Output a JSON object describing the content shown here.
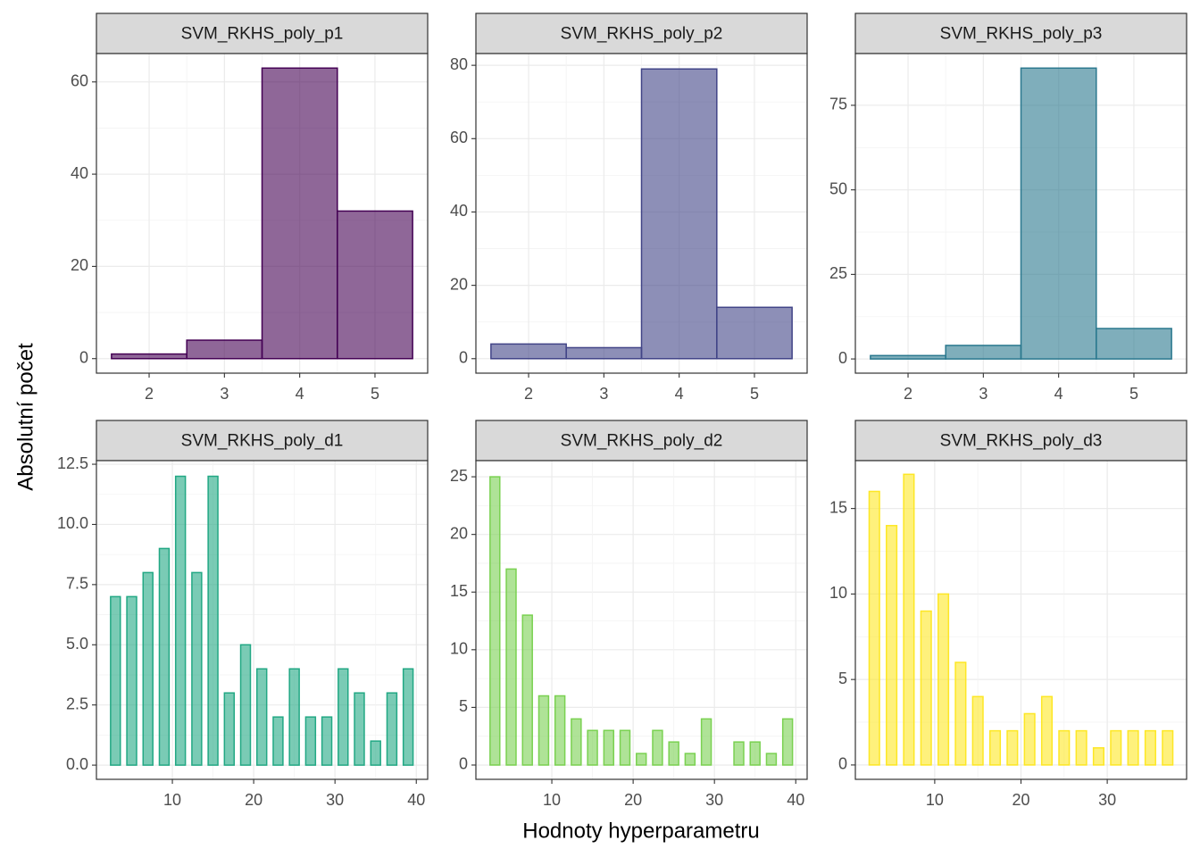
{
  "chart_data": [
    {
      "type": "histogram",
      "title": "SVM_RKHS_poly_p1",
      "color": "#440154",
      "bins": [
        1.5,
        2.5,
        3.5,
        4.5,
        5.5
      ],
      "values": [
        1,
        4,
        63,
        32
      ],
      "xlim": [
        1.3,
        5.7
      ],
      "xticks": [
        2,
        3,
        4,
        5
      ],
      "ylim": [
        -3.15,
        66.15
      ],
      "yticks": [
        0,
        20,
        40,
        60
      ],
      "grid": true
    },
    {
      "type": "histogram",
      "title": "SVM_RKHS_poly_p2",
      "color": "#414487",
      "bins": [
        1.5,
        2.5,
        3.5,
        4.5,
        5.5
      ],
      "values": [
        4,
        3,
        79,
        14
      ],
      "xlim": [
        1.3,
        5.7
      ],
      "xticks": [
        2,
        3,
        4,
        5
      ],
      "ylim": [
        -3.95,
        83.2
      ],
      "yticks": [
        0,
        20,
        40,
        60,
        80
      ],
      "grid": true
    },
    {
      "type": "histogram",
      "title": "SVM_RKHS_poly_p3",
      "color": "#2A788E",
      "bins": [
        1.5,
        2.5,
        3.5,
        4.5,
        5.5
      ],
      "values": [
        1,
        4,
        86,
        9
      ],
      "xlim": [
        1.3,
        5.7
      ],
      "xticks": [
        2,
        3,
        4,
        5
      ],
      "ylim": [
        -4.2,
        90.3
      ],
      "yticks": [
        0,
        25,
        50,
        75
      ],
      "grid": true
    },
    {
      "type": "bar",
      "title": "SVM_RKHS_poly_d1",
      "color": "#22A884",
      "x": [
        3,
        5,
        7,
        9,
        11,
        13,
        15,
        17,
        19,
        21,
        23,
        25,
        27,
        29,
        31,
        33,
        35,
        37,
        39
      ],
      "values": [
        7,
        7,
        8,
        9,
        12,
        8,
        12,
        3,
        5,
        4,
        2,
        4,
        2,
        2,
        4,
        3,
        1,
        3,
        4
      ],
      "xlim": [
        0.66,
        41.4
      ],
      "xticks": [
        10,
        20,
        30,
        40
      ],
      "ylim": [
        -0.59,
        12.65
      ],
      "yticks": [
        {
          "value": 0,
          "label": "0.0"
        },
        2.5,
        {
          "value": 5,
          "label": "5.0"
        },
        7.5,
        {
          "value": 10,
          "label": "10.0"
        },
        12.5
      ],
      "grid": true
    },
    {
      "type": "bar",
      "title": "SVM_RKHS_poly_d2",
      "color": "#7AD151",
      "x": [
        3,
        5,
        7,
        9,
        11,
        13,
        15,
        17,
        19,
        21,
        23,
        25,
        27,
        29,
        31,
        33,
        35,
        37,
        39
      ],
      "values": [
        25,
        17,
        13,
        6,
        6,
        4,
        3,
        3,
        3,
        1,
        3,
        2,
        1,
        4,
        0,
        2,
        2,
        1,
        4
      ],
      "xlim": [
        0.66,
        41.4
      ],
      "xticks": [
        10,
        20,
        30,
        40
      ],
      "ylim": [
        -1.24,
        26.4
      ],
      "yticks": [
        0,
        5,
        10,
        15,
        20,
        25
      ],
      "grid": true
    },
    {
      "type": "bar",
      "title": "SVM_RKHS_poly_d3",
      "color": "#FDE725",
      "x": [
        3,
        5,
        7,
        9,
        11,
        13,
        15,
        17,
        19,
        21,
        23,
        25,
        27,
        29,
        31,
        33,
        35,
        37
      ],
      "values": [
        16,
        14,
        17,
        9,
        10,
        6,
        4,
        2,
        2,
        3,
        4,
        2,
        2,
        1,
        2,
        2,
        2,
        2
      ],
      "xlim": [
        0.8,
        39.2
      ],
      "xticks": [
        10,
        20,
        30
      ],
      "ylim": [
        -0.84,
        17.8
      ],
      "yticks": [
        0,
        5,
        10,
        15
      ],
      "grid": true
    }
  ],
  "xlabel": "Hodnoty hyperparametru",
  "ylabel": "Absolutní počet"
}
